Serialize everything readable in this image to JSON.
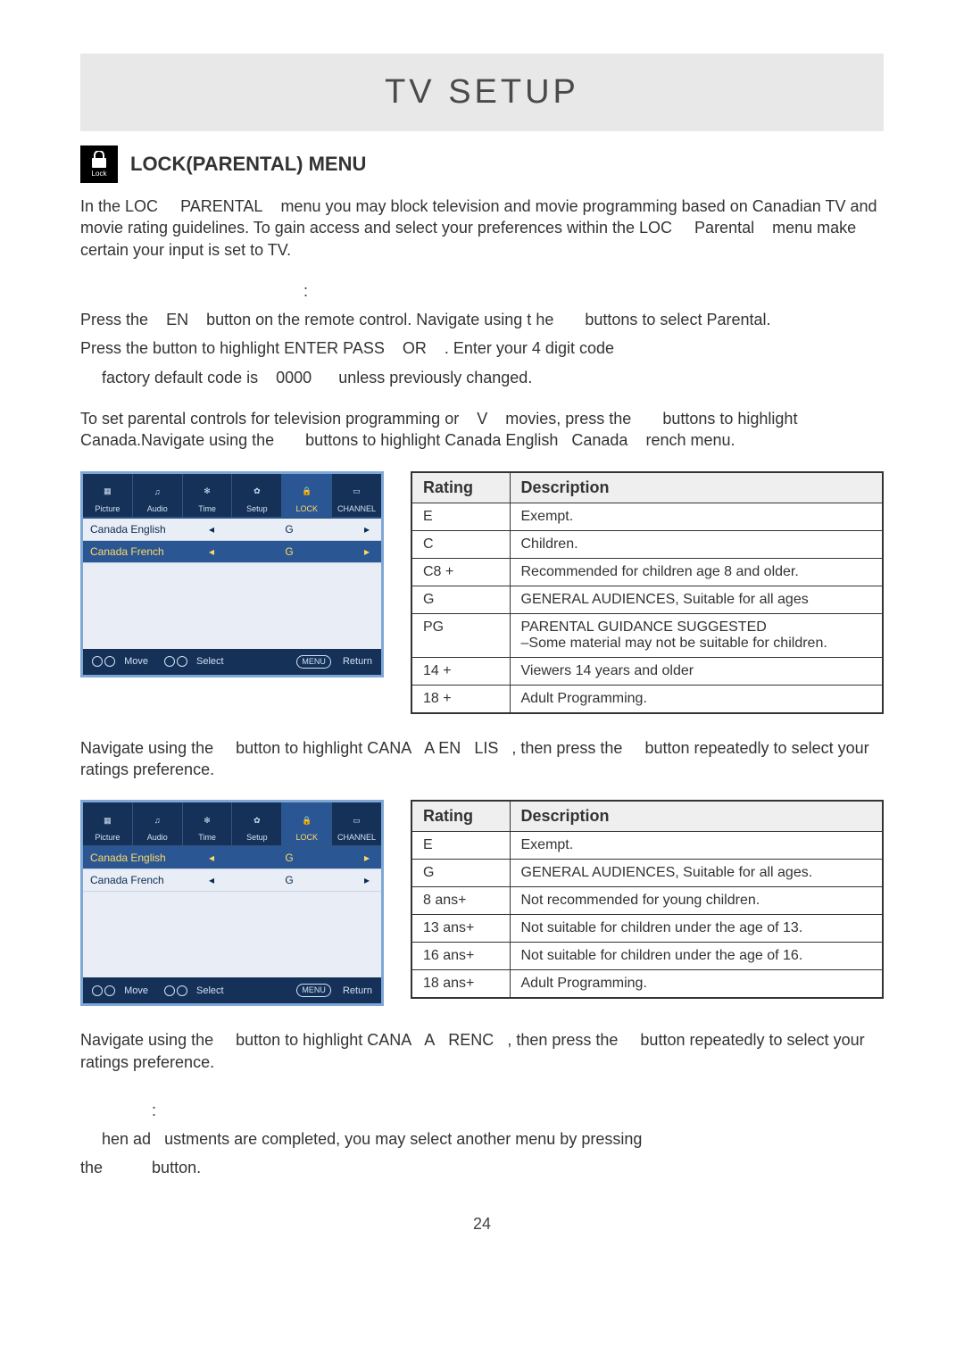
{
  "title": "TV SETUP",
  "section_title": "LOCK(PARENTAL) MENU",
  "lock_badge_sub": "Lock",
  "intro1": "In the LOC",
  "intro2": "PARENTAL",
  "intro3": "menu you may block television and movie programming based on Canadian TV and movie rating guidelines. To gain access and select your preferences within the LOC",
  "intro4": "Parental",
  "intro5": "menu make certain your input is set to TV.",
  "colon1": ":",
  "p1a": "Press the",
  "p1b": "EN",
  "p1c": "button on the remote control. Navigate using t he",
  "p1d": "buttons to select Parental.",
  "p2a": "Press the button to highlight ENTER PASS",
  "p2b": "OR",
  "p2c": ". Enter your 4 digit code",
  "p3a": "factory default code is",
  "p3b": "0000",
  "p3c": "unless previously changed.",
  "p4a": "To set parental controls for television programming or",
  "p4b": "V",
  "p4c": "movies, press the",
  "p4d": "buttons to highlight Canada.Navigate using the",
  "p4e": "buttons to highlight Canada English",
  "p4f": "Canada",
  "p4g": "rench menu.",
  "nav1a": "Navigate using the",
  "nav1b": "button to highlight CANA",
  "nav1c": "A EN",
  "nav1d": "LIS",
  "nav1e": ", then press the",
  "nav1f": "button repeatedly to select your ratings preference.",
  "nav2a": "Navigate using the",
  "nav2b": "button to highlight CANA",
  "nav2c": "A",
  "nav2d": "RENC",
  "nav2e": ", then press the",
  "nav2f": "button repeatedly to select your ratings preference.",
  "colon2": ":",
  "close1": "hen ad",
  "close2": "ustments are completed, you may select another menu by pressing",
  "close3": "the",
  "close4": "button.",
  "page_number": "24",
  "tv_tabs": [
    "Picture",
    "Audio",
    "Time",
    "Setup",
    "LOCK",
    "CHANNEL"
  ],
  "tv_rows": [
    {
      "label": "Canada English",
      "val": "G"
    },
    {
      "label": "Canada French",
      "val": "G"
    }
  ],
  "tv_footer": {
    "move": "Move",
    "select": "Select",
    "ret": "Return",
    "menu": "MENU"
  },
  "table1_header": {
    "r": "Rating",
    "d": "Description"
  },
  "table1": [
    {
      "r": "E",
      "d": "Exempt."
    },
    {
      "r": "C",
      "d": "Children."
    },
    {
      "r": "C8 +",
      "d": "Recommended for children age 8 and older."
    },
    {
      "r": "G",
      "d": "GENERAL AUDIENCES, Suitable for all ages"
    },
    {
      "r": "PG",
      "d": "PARENTAL GUIDANCE SUGGESTED\n–Some material may not be suitable for children."
    },
    {
      "r": "14 +",
      "d": "Viewers 14 years and older"
    },
    {
      "r": "18 +",
      "d": "Adult Programming."
    }
  ],
  "table2_header": {
    "r": "Rating",
    "d": "Description"
  },
  "table2": [
    {
      "r": "E",
      "d": "Exempt."
    },
    {
      "r": "G",
      "d": "GENERAL AUDIENCES, Suitable for all ages."
    },
    {
      "r": "8 ans+",
      "d": "Not recommended for young children."
    },
    {
      "r": "13 ans+",
      "d": "Not suitable for children under the age of 13."
    },
    {
      "r": "16 ans+",
      "d": "Not suitable for children under the age of 16."
    },
    {
      "r": "18 ans+",
      "d": "Adult Programming."
    }
  ]
}
